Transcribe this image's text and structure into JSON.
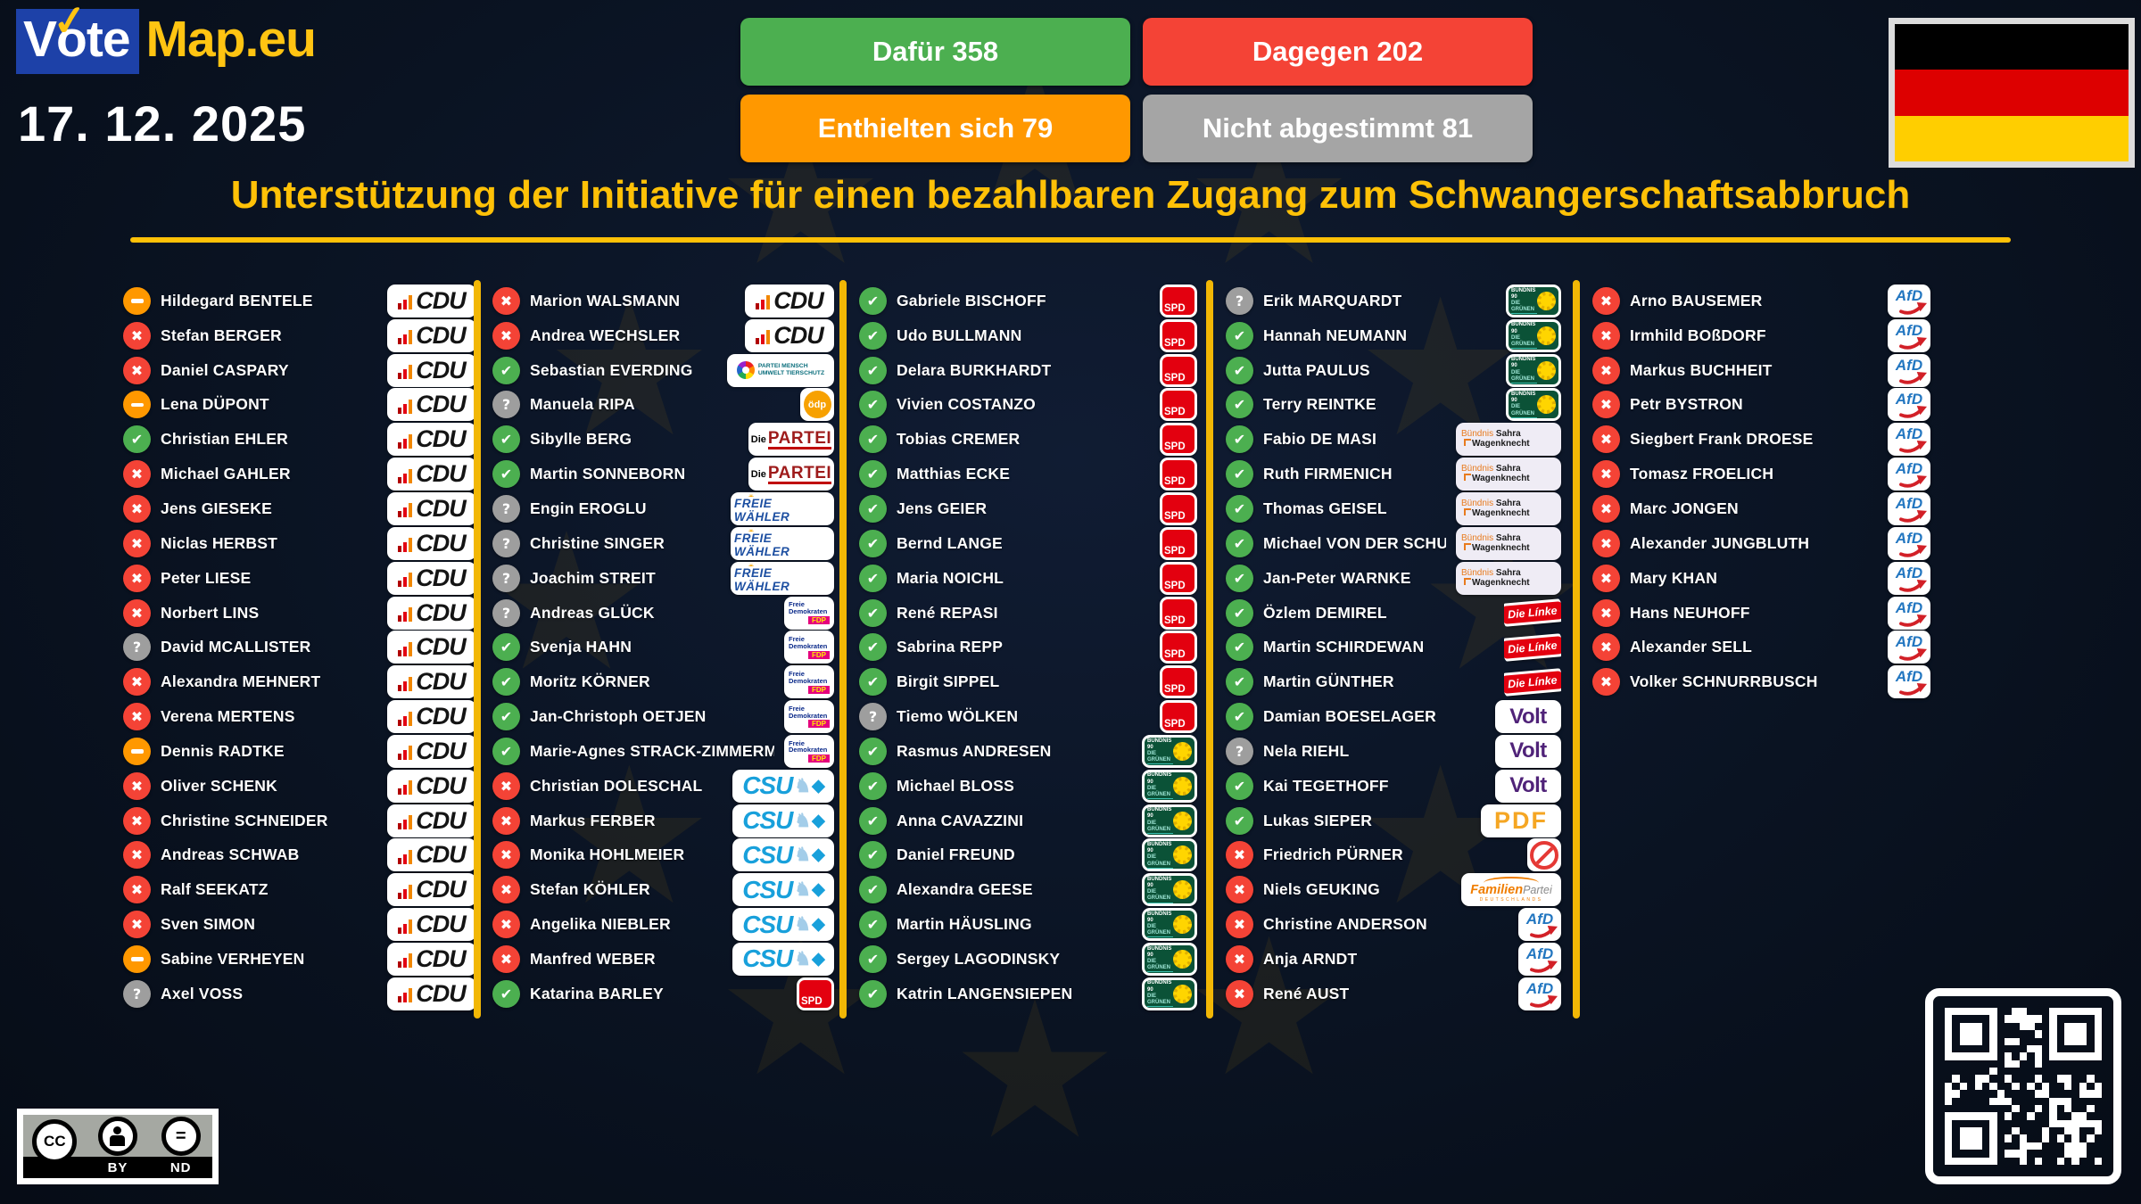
{
  "brand": {
    "vote": "Vote",
    "map": "Map.eu"
  },
  "date": "17. 12. 2025",
  "summary": [
    {
      "id": "for",
      "label": "Dafür 358",
      "color": "#4caf50"
    },
    {
      "id": "against",
      "label": "Dagegen 202",
      "color": "#f44336"
    },
    {
      "id": "abstain",
      "label": "Enthielten sich 79",
      "color": "#ff9800"
    },
    {
      "id": "novote",
      "label": "Nicht abgestimmt 81",
      "color": "#a5a5a5"
    }
  ],
  "title": "Unterstützung der Initiative für einen bezahlbaren Zugang zum Schwangerschaftsabbruch",
  "colors": {
    "accent": "#ffc107",
    "for": "#4caf50",
    "against": "#f44336",
    "abstain": "#ff9800",
    "novote": "#9e9e9e"
  },
  "parties": {
    "CDU": {
      "label": "CDU"
    },
    "CSU": {
      "label": "CSU"
    },
    "SPD": {
      "label": "SPD"
    },
    "GRUENE": {
      "line1": "BÜNDNIS 90",
      "line2": "DIE GRÜNEN"
    },
    "FDP": {
      "line1": "Freie",
      "line2": "Demokraten",
      "badge": "FDP"
    },
    "PARTEI": {
      "prefix": "Die",
      "label": "PARTEI"
    },
    "FREIE_WAEHLER": {
      "label": "FREIE WÄHLER"
    },
    "TIERSCHUTZ": {
      "line1": "PARTEI MENSCH",
      "line2": "UMWELT TIERSCHUTZ"
    },
    "OEDP": {
      "label": "ödp"
    },
    "BSW": {
      "word1": "Bündnis",
      "word2": "Sahra",
      "word3": "Wagenknecht"
    },
    "LINKE": {
      "label": "Die Línke"
    },
    "VOLT": {
      "label": "Volt"
    },
    "PDF": {
      "label": "PDF"
    },
    "PARTEILOS": {
      "label": ""
    },
    "FAMILIE": {
      "word1": "Familien",
      "word2": "Partei",
      "sub": "DEUTSCHLANDS"
    },
    "AFD": {
      "label": "AfD"
    }
  },
  "columns": [
    [
      {
        "name": "Hildegard BENTELE",
        "vote": "abstain",
        "party": "CDU"
      },
      {
        "name": "Stefan BERGER",
        "vote": "against",
        "party": "CDU"
      },
      {
        "name": "Daniel CASPARY",
        "vote": "against",
        "party": "CDU"
      },
      {
        "name": "Lena DÜPONT",
        "vote": "abstain",
        "party": "CDU"
      },
      {
        "name": "Christian EHLER",
        "vote": "for",
        "party": "CDU"
      },
      {
        "name": "Michael GAHLER",
        "vote": "against",
        "party": "CDU"
      },
      {
        "name": "Jens GIESEKE",
        "vote": "against",
        "party": "CDU"
      },
      {
        "name": "Niclas HERBST",
        "vote": "against",
        "party": "CDU"
      },
      {
        "name": "Peter LIESE",
        "vote": "against",
        "party": "CDU"
      },
      {
        "name": "Norbert LINS",
        "vote": "against",
        "party": "CDU"
      },
      {
        "name": "David MCALLISTER",
        "vote": "novote",
        "party": "CDU"
      },
      {
        "name": "Alexandra MEHNERT",
        "vote": "against",
        "party": "CDU"
      },
      {
        "name": "Verena MERTENS",
        "vote": "against",
        "party": "CDU"
      },
      {
        "name": "Dennis RADTKE",
        "vote": "abstain",
        "party": "CDU"
      },
      {
        "name": "Oliver SCHENK",
        "vote": "against",
        "party": "CDU"
      },
      {
        "name": "Christine SCHNEIDER",
        "vote": "against",
        "party": "CDU"
      },
      {
        "name": "Andreas SCHWAB",
        "vote": "against",
        "party": "CDU"
      },
      {
        "name": "Ralf SEEKATZ",
        "vote": "against",
        "party": "CDU"
      },
      {
        "name": "Sven SIMON",
        "vote": "against",
        "party": "CDU"
      },
      {
        "name": "Sabine VERHEYEN",
        "vote": "abstain",
        "party": "CDU"
      },
      {
        "name": "Axel VOSS",
        "vote": "novote",
        "party": "CDU"
      }
    ],
    [
      {
        "name": "Marion WALSMANN",
        "vote": "against",
        "party": "CDU"
      },
      {
        "name": "Andrea WECHSLER",
        "vote": "against",
        "party": "CDU"
      },
      {
        "name": "Sebastian EVERDING",
        "vote": "for",
        "party": "TIERSCHUTZ"
      },
      {
        "name": "Manuela RIPA",
        "vote": "novote",
        "party": "OEDP"
      },
      {
        "name": "Sibylle BERG",
        "vote": "for",
        "party": "PARTEI"
      },
      {
        "name": "Martin SONNEBORN",
        "vote": "for",
        "party": "PARTEI"
      },
      {
        "name": "Engin EROGLU",
        "vote": "novote",
        "party": "FREIE_WAEHLER"
      },
      {
        "name": "Christine SINGER",
        "vote": "novote",
        "party": "FREIE_WAEHLER"
      },
      {
        "name": "Joachim STREIT",
        "vote": "novote",
        "party": "FREIE_WAEHLER"
      },
      {
        "name": "Andreas GLÜCK",
        "vote": "novote",
        "party": "FDP"
      },
      {
        "name": "Svenja HAHN",
        "vote": "for",
        "party": "FDP"
      },
      {
        "name": "Moritz KÖRNER",
        "vote": "for",
        "party": "FDP"
      },
      {
        "name": "Jan-Christoph OETJEN",
        "vote": "for",
        "party": "FDP"
      },
      {
        "name": "Marie-Agnes STRACK-ZIMMERMANN",
        "vote": "for",
        "party": "FDP"
      },
      {
        "name": "Christian DOLESCHAL",
        "vote": "against",
        "party": "CSU"
      },
      {
        "name": "Markus FERBER",
        "vote": "against",
        "party": "CSU"
      },
      {
        "name": "Monika HOHLMEIER",
        "vote": "against",
        "party": "CSU"
      },
      {
        "name": "Stefan KÖHLER",
        "vote": "against",
        "party": "CSU"
      },
      {
        "name": "Angelika NIEBLER",
        "vote": "against",
        "party": "CSU"
      },
      {
        "name": "Manfred WEBER",
        "vote": "against",
        "party": "CSU"
      },
      {
        "name": "Katarina BARLEY",
        "vote": "for",
        "party": "SPD"
      }
    ],
    [
      {
        "name": "Gabriele BISCHOFF",
        "vote": "for",
        "party": "SPD"
      },
      {
        "name": "Udo BULLMANN",
        "vote": "for",
        "party": "SPD"
      },
      {
        "name": "Delara BURKHARDT",
        "vote": "for",
        "party": "SPD"
      },
      {
        "name": "Vivien COSTANZO",
        "vote": "for",
        "party": "SPD"
      },
      {
        "name": "Tobias CREMER",
        "vote": "for",
        "party": "SPD"
      },
      {
        "name": "Matthias ECKE",
        "vote": "for",
        "party": "SPD"
      },
      {
        "name": "Jens GEIER",
        "vote": "for",
        "party": "SPD"
      },
      {
        "name": "Bernd LANGE",
        "vote": "for",
        "party": "SPD"
      },
      {
        "name": "Maria NOICHL",
        "vote": "for",
        "party": "SPD"
      },
      {
        "name": "René REPASI",
        "vote": "for",
        "party": "SPD"
      },
      {
        "name": "Sabrina REPP",
        "vote": "for",
        "party": "SPD"
      },
      {
        "name": "Birgit SIPPEL",
        "vote": "for",
        "party": "SPD"
      },
      {
        "name": "Tiemo WÖLKEN",
        "vote": "novote",
        "party": "SPD"
      },
      {
        "name": "Rasmus ANDRESEN",
        "vote": "for",
        "party": "GRUENE"
      },
      {
        "name": "Michael BLOSS",
        "vote": "for",
        "party": "GRUENE"
      },
      {
        "name": "Anna CAVAZZINI",
        "vote": "for",
        "party": "GRUENE"
      },
      {
        "name": "Daniel FREUND",
        "vote": "for",
        "party": "GRUENE"
      },
      {
        "name": "Alexandra GEESE",
        "vote": "for",
        "party": "GRUENE"
      },
      {
        "name": "Martin HÄUSLING",
        "vote": "for",
        "party": "GRUENE"
      },
      {
        "name": "Sergey LAGODINSKY",
        "vote": "for",
        "party": "GRUENE"
      },
      {
        "name": "Katrin LANGENSIEPEN",
        "vote": "for",
        "party": "GRUENE"
      }
    ],
    [
      {
        "name": "Erik MARQUARDT",
        "vote": "novote",
        "party": "GRUENE"
      },
      {
        "name": "Hannah NEUMANN",
        "vote": "for",
        "party": "GRUENE"
      },
      {
        "name": "Jutta PAULUS",
        "vote": "for",
        "party": "GRUENE"
      },
      {
        "name": "Terry REINTKE",
        "vote": "for",
        "party": "GRUENE"
      },
      {
        "name": "Fabio DE MASI",
        "vote": "for",
        "party": "BSW"
      },
      {
        "name": "Ruth FIRMENICH",
        "vote": "for",
        "party": "BSW"
      },
      {
        "name": "Thomas GEISEL",
        "vote": "for",
        "party": "BSW"
      },
      {
        "name": "Michael VON DER SCHULENBURG",
        "vote": "for",
        "party": "BSW"
      },
      {
        "name": "Jan-Peter WARNKE",
        "vote": "for",
        "party": "BSW"
      },
      {
        "name": "Özlem DEMIREL",
        "vote": "for",
        "party": "LINKE"
      },
      {
        "name": "Martin SCHIRDEWAN",
        "vote": "for",
        "party": "LINKE"
      },
      {
        "name": "Martin GÜNTHER",
        "vote": "for",
        "party": "LINKE"
      },
      {
        "name": "Damian BOESELAGER",
        "vote": "for",
        "party": "VOLT"
      },
      {
        "name": "Nela RIEHL",
        "vote": "novote",
        "party": "VOLT"
      },
      {
        "name": "Kai TEGETHOFF",
        "vote": "for",
        "party": "VOLT"
      },
      {
        "name": "Lukas SIEPER",
        "vote": "for",
        "party": "PDF"
      },
      {
        "name": "Friedrich PÜRNER",
        "vote": "against",
        "party": "PARTEILOS"
      },
      {
        "name": "Niels GEUKING",
        "vote": "against",
        "party": "FAMILIE"
      },
      {
        "name": "Christine ANDERSON",
        "vote": "against",
        "party": "AFD"
      },
      {
        "name": "Anja ARNDT",
        "vote": "against",
        "party": "AFD"
      },
      {
        "name": "René AUST",
        "vote": "against",
        "party": "AFD"
      }
    ],
    [
      {
        "name": "Arno BAUSEMER",
        "vote": "against",
        "party": "AFD"
      },
      {
        "name": "Irmhild BOßDORF",
        "vote": "against",
        "party": "AFD"
      },
      {
        "name": "Markus BUCHHEIT",
        "vote": "against",
        "party": "AFD"
      },
      {
        "name": "Petr BYSTRON",
        "vote": "against",
        "party": "AFD"
      },
      {
        "name": "Siegbert Frank DROESE",
        "vote": "against",
        "party": "AFD"
      },
      {
        "name": "Tomasz FROELICH",
        "vote": "against",
        "party": "AFD"
      },
      {
        "name": "Marc JONGEN",
        "vote": "against",
        "party": "AFD"
      },
      {
        "name": "Alexander JUNGBLUTH",
        "vote": "against",
        "party": "AFD"
      },
      {
        "name": "Mary KHAN",
        "vote": "against",
        "party": "AFD"
      },
      {
        "name": "Hans NEUHOFF",
        "vote": "against",
        "party": "AFD"
      },
      {
        "name": "Alexander SELL",
        "vote": "against",
        "party": "AFD"
      },
      {
        "name": "Volker SCHNURRBUSCH",
        "vote": "against",
        "party": "AFD"
      }
    ]
  ],
  "footer": {
    "cc": "CC",
    "by": "BY",
    "nd": "ND"
  }
}
